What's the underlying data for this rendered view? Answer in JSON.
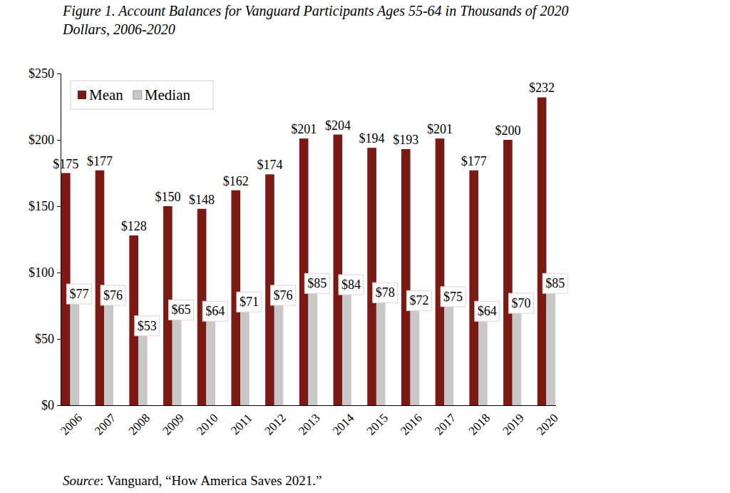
{
  "chart_data": {
    "type": "bar",
    "title": "Figure 1. Account Balances for Vanguard Participants Ages 55-64 in Thousands of 2020 Dollars, 2006-2020",
    "annotations": [
      "Source: Vanguard, “How America Saves 2021.”"
    ],
    "categories": [
      "2006",
      "2007",
      "2008",
      "2009",
      "2010",
      "2011",
      "2012",
      "2013",
      "2014",
      "2015",
      "2016",
      "2017",
      "2018",
      "2019",
      "2020"
    ],
    "series": [
      {
        "name": "Mean",
        "color": "#7b1a14",
        "values": [
          175,
          177,
          128,
          150,
          148,
          162,
          174,
          201,
          204,
          194,
          193,
          201,
          177,
          200,
          232
        ],
        "value_labels": [
          "$175",
          "$177",
          "$128",
          "$150",
          "$148",
          "$162",
          "$174",
          "$201",
          "$204",
          "$194",
          "$193",
          "$201",
          "$177",
          "$200",
          "$232"
        ]
      },
      {
        "name": "Median",
        "color": "#c8c8c8",
        "values": [
          77,
          76,
          53,
          65,
          64,
          71,
          76,
          85,
          84,
          78,
          72,
          75,
          64,
          70,
          85
        ],
        "value_labels": [
          "$77",
          "$76",
          "$53",
          "$65",
          "$64",
          "$71",
          "$76",
          "$85",
          "$84",
          "$78",
          "$72",
          "$75",
          "$64",
          "$70",
          "$85"
        ]
      }
    ],
    "ylim": [
      0,
      250
    ],
    "yticks": [
      {
        "value": 0,
        "label": "$0"
      },
      {
        "value": 50,
        "label": "$50"
      },
      {
        "value": 100,
        "label": "$100"
      },
      {
        "value": 150,
        "label": "$150"
      },
      {
        "value": 200,
        "label": "$200"
      },
      {
        "value": 250,
        "label": "$250"
      }
    ],
    "grid": false,
    "legend": "upper left",
    "data_labels": true
  }
}
